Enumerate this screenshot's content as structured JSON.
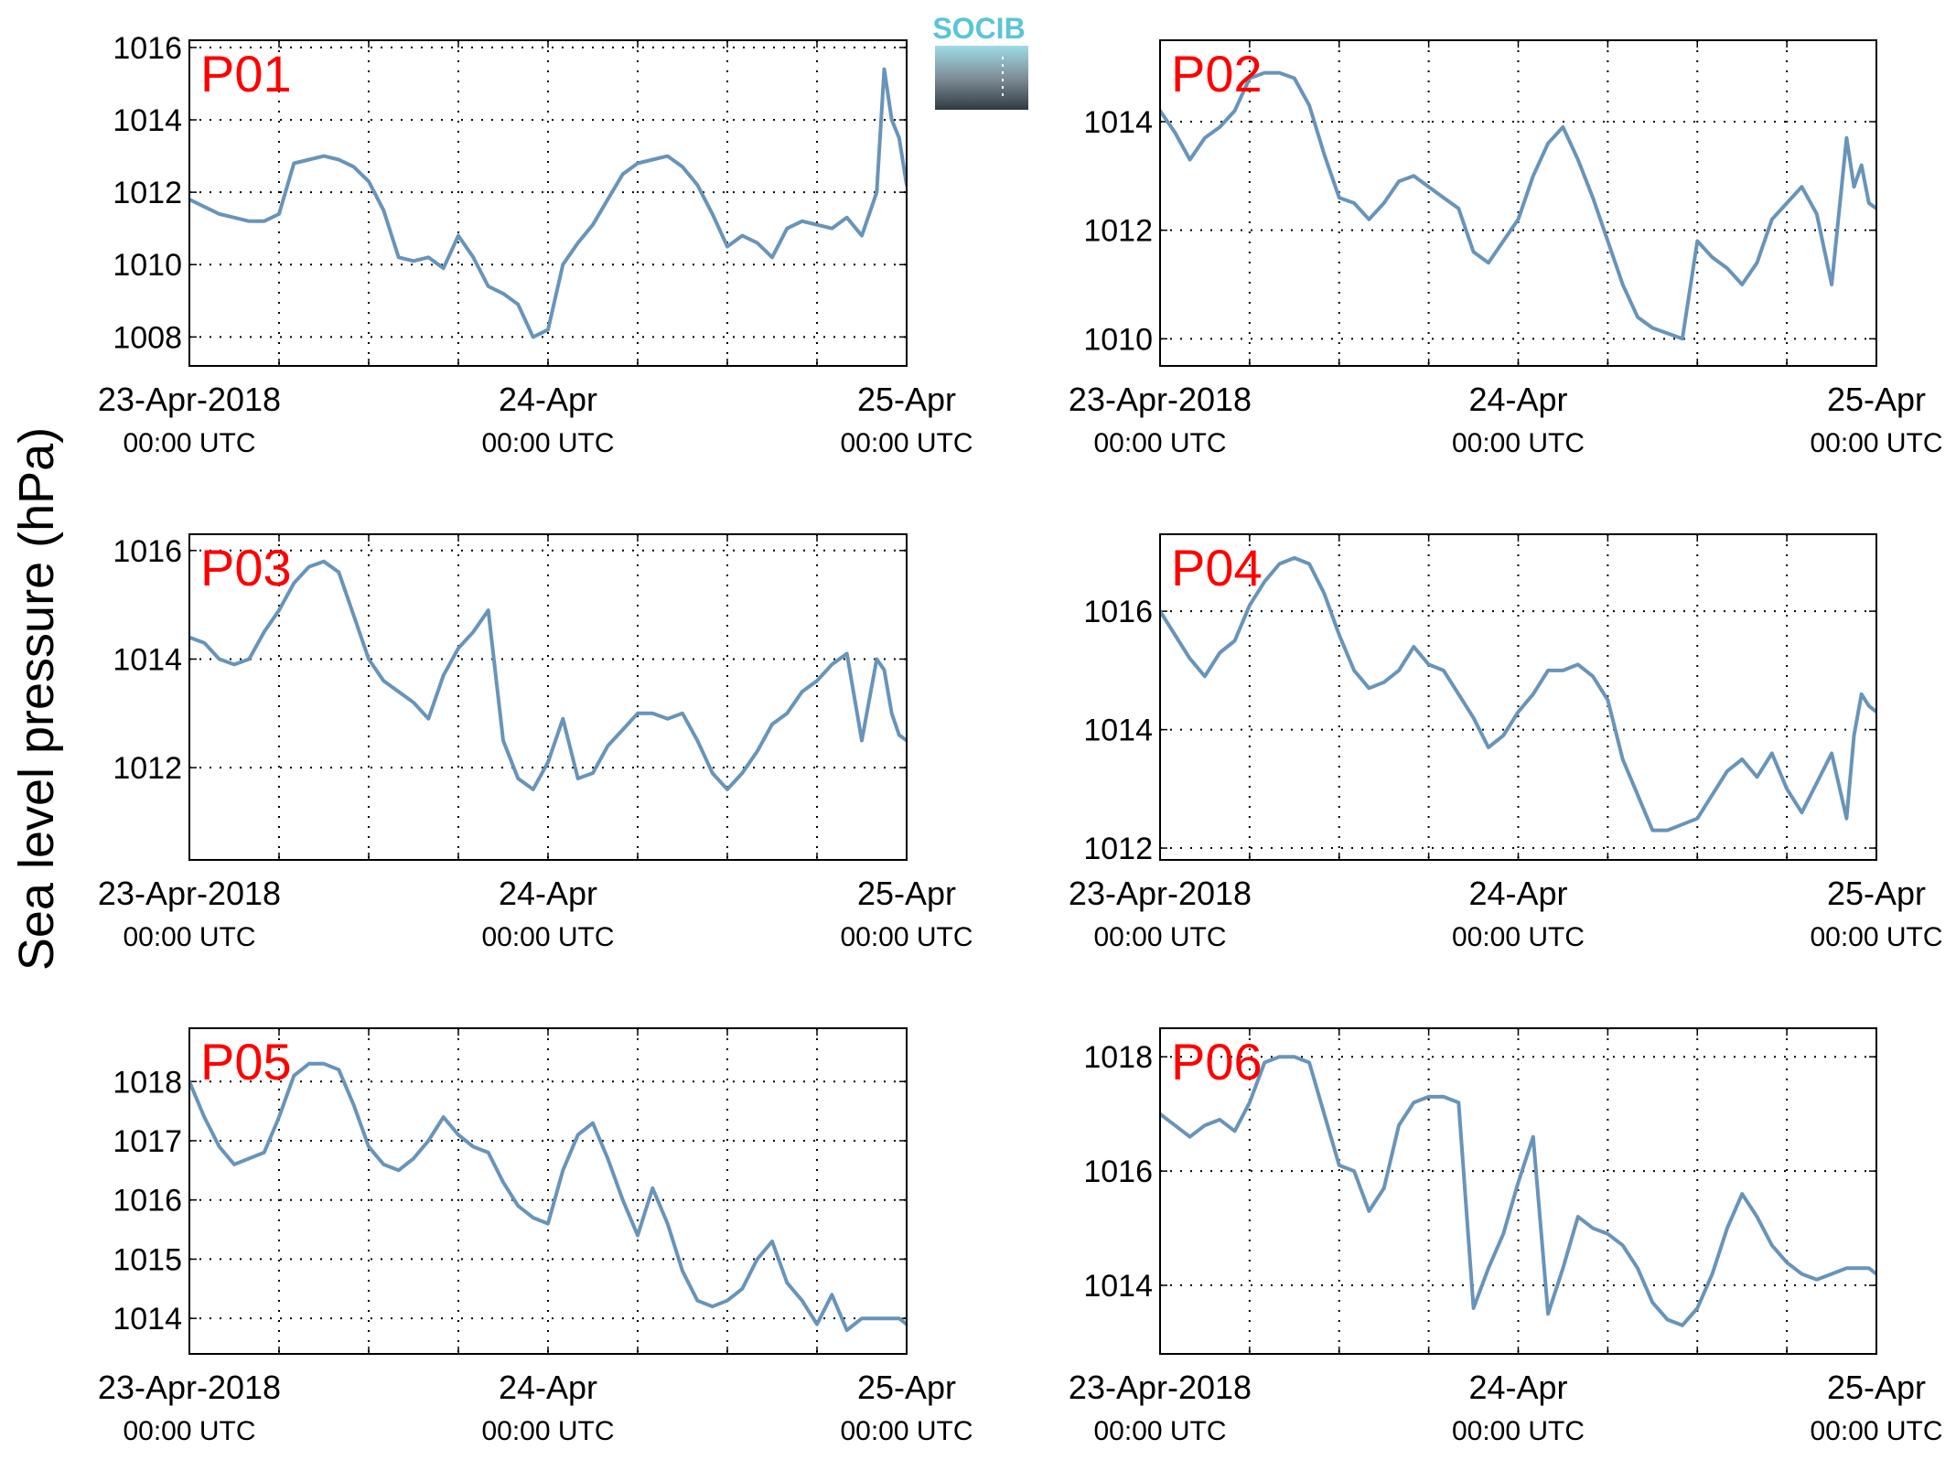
{
  "figure": {
    "ylabel": "Sea level pressure (hPa)",
    "logo": {
      "text": "SOCIB",
      "text_color": "#5bc4d8"
    },
    "series_color": "#6894ba",
    "label_color": "#ff0000",
    "x_tick_labels": [
      {
        "line1": "23-Apr-2018",
        "line2": "00:00 UTC"
      },
      {
        "line1": "24-Apr",
        "line2": "00:00 UTC"
      },
      {
        "line1": "25-Apr",
        "line2": "00:00 UTC"
      }
    ]
  },
  "chart_data": [
    {
      "type": "line",
      "panel": "P01",
      "x_unit": "hours since 23-Apr-2018 00:00 UTC",
      "xlim": [
        0,
        48
      ],
      "ylim": [
        1007.2,
        1016.2
      ],
      "yticks": [
        1008,
        1010,
        1012,
        1014,
        1016
      ],
      "grid": true,
      "x": [
        0,
        1,
        2,
        3,
        4,
        5,
        6,
        7,
        8,
        9,
        10,
        11,
        12,
        13,
        14,
        15,
        16,
        17,
        18,
        19,
        20,
        21,
        22,
        23,
        24,
        25,
        26,
        27,
        28,
        29,
        30,
        31,
        32,
        33,
        34,
        35,
        36,
        37,
        38,
        39,
        40,
        41,
        42,
        43,
        44,
        45,
        46,
        46.5,
        47,
        47.5,
        48
      ],
      "y": [
        1011.8,
        1011.6,
        1011.4,
        1011.3,
        1011.2,
        1011.2,
        1011.4,
        1012.8,
        1012.9,
        1013.0,
        1012.9,
        1012.7,
        1012.3,
        1011.5,
        1010.2,
        1010.1,
        1010.2,
        1009.9,
        1010.8,
        1010.2,
        1009.4,
        1009.2,
        1008.9,
        1008.0,
        1008.2,
        1010.0,
        1010.6,
        1011.1,
        1011.8,
        1012.5,
        1012.8,
        1012.9,
        1013.0,
        1012.7,
        1012.2,
        1011.4,
        1010.5,
        1010.8,
        1010.6,
        1010.2,
        1011.0,
        1011.2,
        1011.1,
        1011.0,
        1011.3,
        1010.8,
        1012.0,
        1015.4,
        1014.0,
        1013.5,
        1012.2
      ]
    },
    {
      "type": "line",
      "panel": "P02",
      "x_unit": "hours since 23-Apr-2018 00:00 UTC",
      "xlim": [
        0,
        48
      ],
      "ylim": [
        1009.5,
        1015.5
      ],
      "yticks": [
        1010,
        1012,
        1014
      ],
      "grid": true,
      "x": [
        0,
        1,
        2,
        3,
        4,
        5,
        6,
        7,
        8,
        9,
        10,
        11,
        12,
        13,
        14,
        15,
        16,
        17,
        18,
        19,
        20,
        21,
        22,
        23,
        24,
        25,
        26,
        27,
        28,
        29,
        30,
        31,
        32,
        33,
        34,
        35,
        36,
        37,
        38,
        39,
        40,
        41,
        42,
        43,
        44,
        45,
        46,
        46.5,
        47,
        47.5,
        48
      ],
      "y": [
        1014.2,
        1013.8,
        1013.3,
        1013.7,
        1013.9,
        1014.2,
        1014.8,
        1014.9,
        1014.9,
        1014.8,
        1014.3,
        1013.4,
        1012.6,
        1012.5,
        1012.2,
        1012.5,
        1012.9,
        1013.0,
        1012.8,
        1012.6,
        1012.4,
        1011.6,
        1011.4,
        1011.8,
        1012.2,
        1013.0,
        1013.6,
        1013.9,
        1013.3,
        1012.6,
        1011.8,
        1011.0,
        1010.4,
        1010.2,
        1010.1,
        1010.0,
        1011.8,
        1011.5,
        1011.3,
        1011.0,
        1011.4,
        1012.2,
        1012.5,
        1012.8,
        1012.3,
        1011.0,
        1013.7,
        1012.8,
        1013.2,
        1012.5,
        1012.4
      ]
    },
    {
      "type": "line",
      "panel": "P03",
      "x_unit": "hours since 23-Apr-2018 00:00 UTC",
      "xlim": [
        0,
        48
      ],
      "ylim": [
        1010.3,
        1016.3
      ],
      "yticks": [
        1012,
        1014,
        1016
      ],
      "grid": true,
      "x": [
        0,
        1,
        2,
        3,
        4,
        5,
        6,
        7,
        8,
        9,
        10,
        11,
        12,
        13,
        14,
        15,
        16,
        17,
        18,
        19,
        20,
        21,
        22,
        23,
        24,
        25,
        26,
        27,
        28,
        29,
        30,
        31,
        32,
        33,
        34,
        35,
        36,
        37,
        38,
        39,
        40,
        41,
        42,
        43,
        44,
        45,
        46,
        46.5,
        47,
        47.5,
        48
      ],
      "y": [
        1014.4,
        1014.3,
        1014.0,
        1013.9,
        1014.0,
        1014.5,
        1014.9,
        1015.4,
        1015.7,
        1015.8,
        1015.6,
        1014.8,
        1014.0,
        1013.6,
        1013.4,
        1013.2,
        1012.9,
        1013.7,
        1014.2,
        1014.5,
        1014.9,
        1012.5,
        1011.8,
        1011.6,
        1012.1,
        1012.9,
        1011.8,
        1011.9,
        1012.4,
        1012.7,
        1013.0,
        1013.0,
        1012.9,
        1013.0,
        1012.5,
        1011.9,
        1011.6,
        1011.9,
        1012.3,
        1012.8,
        1013.0,
        1013.4,
        1013.6,
        1013.9,
        1014.1,
        1012.5,
        1014.0,
        1013.8,
        1013.0,
        1012.6,
        1012.5
      ]
    },
    {
      "type": "line",
      "panel": "P04",
      "x_unit": "hours since 23-Apr-2018 00:00 UTC",
      "xlim": [
        0,
        48
      ],
      "ylim": [
        1011.8,
        1017.3
      ],
      "yticks": [
        1012,
        1014,
        1016
      ],
      "grid": true,
      "x": [
        0,
        1,
        2,
        3,
        4,
        5,
        6,
        7,
        8,
        9,
        10,
        11,
        12,
        13,
        14,
        15,
        16,
        17,
        18,
        19,
        20,
        21,
        22,
        23,
        24,
        25,
        26,
        27,
        28,
        29,
        30,
        31,
        32,
        33,
        34,
        35,
        36,
        37,
        38,
        39,
        40,
        41,
        42,
        43,
        44,
        45,
        46,
        46.5,
        47,
        47.5,
        48
      ],
      "y": [
        1016.0,
        1015.6,
        1015.2,
        1014.9,
        1015.3,
        1015.5,
        1016.1,
        1016.5,
        1016.8,
        1016.9,
        1016.8,
        1016.3,
        1015.6,
        1015.0,
        1014.7,
        1014.8,
        1015.0,
        1015.4,
        1015.1,
        1015.0,
        1014.6,
        1014.2,
        1013.7,
        1013.9,
        1014.3,
        1014.6,
        1015.0,
        1015.0,
        1015.1,
        1014.9,
        1014.5,
        1013.5,
        1012.9,
        1012.3,
        1012.3,
        1012.4,
        1012.5,
        1012.9,
        1013.3,
        1013.5,
        1013.2,
        1013.6,
        1013.0,
        1012.6,
        1013.1,
        1013.6,
        1012.5,
        1013.9,
        1014.6,
        1014.4,
        1014.3
      ]
    },
    {
      "type": "line",
      "panel": "P05",
      "x_unit": "hours since 23-Apr-2018 00:00 UTC",
      "xlim": [
        0,
        48
      ],
      "ylim": [
        1013.4,
        1018.9
      ],
      "yticks": [
        1014,
        1015,
        1016,
        1017,
        1018
      ],
      "grid": true,
      "x": [
        0,
        1,
        2,
        3,
        4,
        5,
        6,
        7,
        8,
        9,
        10,
        11,
        12,
        13,
        14,
        15,
        16,
        17,
        18,
        19,
        20,
        21,
        22,
        23,
        24,
        25,
        26,
        27,
        28,
        29,
        30,
        31,
        32,
        33,
        34,
        35,
        36,
        37,
        38,
        39,
        40,
        41,
        42,
        43,
        44,
        45,
        46,
        46.5,
        47,
        47.5,
        48
      ],
      "y": [
        1018.0,
        1017.4,
        1016.9,
        1016.6,
        1016.7,
        1016.8,
        1017.4,
        1018.1,
        1018.3,
        1018.3,
        1018.2,
        1017.6,
        1016.9,
        1016.6,
        1016.5,
        1016.7,
        1017.0,
        1017.4,
        1017.1,
        1016.9,
        1016.8,
        1016.3,
        1015.9,
        1015.7,
        1015.6,
        1016.5,
        1017.1,
        1017.3,
        1016.7,
        1016.0,
        1015.4,
        1016.2,
        1015.6,
        1014.8,
        1014.3,
        1014.2,
        1014.3,
        1014.5,
        1015.0,
        1015.3,
        1014.6,
        1014.3,
        1013.9,
        1014.4,
        1013.8,
        1014.0,
        1014.0,
        1014.0,
        1014.0,
        1014.0,
        1013.9
      ]
    },
    {
      "type": "line",
      "panel": "P06",
      "x_unit": "hours since 23-Apr-2018 00:00 UTC",
      "xlim": [
        0,
        48
      ],
      "ylim": [
        1012.8,
        1018.5
      ],
      "yticks": [
        1014,
        1016,
        1018
      ],
      "grid": true,
      "x": [
        0,
        1,
        2,
        3,
        4,
        5,
        6,
        7,
        8,
        9,
        10,
        11,
        12,
        13,
        14,
        15,
        16,
        17,
        18,
        19,
        20,
        21,
        22,
        23,
        24,
        25,
        26,
        27,
        28,
        29,
        30,
        31,
        32,
        33,
        34,
        35,
        36,
        37,
        38,
        39,
        40,
        41,
        42,
        43,
        44,
        45,
        46,
        46.5,
        47,
        47.5,
        48
      ],
      "y": [
        1017.0,
        1016.8,
        1016.6,
        1016.8,
        1016.9,
        1016.7,
        1017.2,
        1017.9,
        1018.0,
        1018.0,
        1017.9,
        1017.0,
        1016.1,
        1016.0,
        1015.3,
        1015.7,
        1016.8,
        1017.2,
        1017.3,
        1017.3,
        1017.2,
        1013.6,
        1014.3,
        1014.9,
        1015.8,
        1016.6,
        1013.5,
        1014.3,
        1015.2,
        1015.0,
        1014.9,
        1014.7,
        1014.3,
        1013.7,
        1013.4,
        1013.3,
        1013.6,
        1014.2,
        1015.0,
        1015.6,
        1015.2,
        1014.7,
        1014.4,
        1014.2,
        1014.1,
        1014.2,
        1014.3,
        1014.3,
        1014.3,
        1014.3,
        1014.2
      ]
    }
  ]
}
